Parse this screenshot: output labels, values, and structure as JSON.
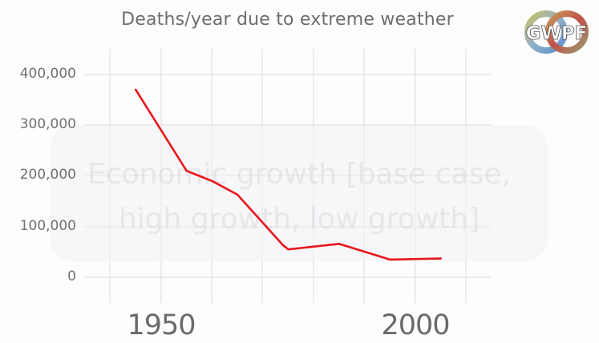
{
  "chart_data": {
    "type": "line",
    "title": "Deaths/year due to extreme weather",
    "xlabel": "",
    "ylabel": "",
    "x": [
      1945,
      1955,
      1960,
      1965,
      1974,
      1975,
      1985,
      1995,
      2005
    ],
    "series": [
      {
        "name": "Deaths/year",
        "color": "#e8161c",
        "values": [
          370000,
          210000,
          190000,
          163000,
          63000,
          55000,
          66000,
          35000,
          37000
        ]
      }
    ],
    "xlim": [
      1940,
      2015
    ],
    "ylim": [
      -50000,
      450000
    ],
    "x_tick_labels": [
      "1950",
      "2000"
    ],
    "y_tick_labels": [
      "400,000",
      "300,000",
      "200,000",
      "100,000",
      "0"
    ],
    "grid": true,
    "legend": "none"
  },
  "header": {
    "title": "Deaths/year due to extreme weather"
  },
  "logo": {
    "text": "GWPF"
  },
  "overlay": {
    "line1": "Economic growth [base case,",
    "line2": "high growth, low growth]"
  },
  "axes": {
    "y_ticks": [
      "400,000",
      "300,000",
      "200,000",
      "100,000",
      "0"
    ],
    "x_ticks": [
      "1950",
      "2000"
    ]
  },
  "colors": {
    "line": "#e8161c",
    "grid": "#d8d8d8",
    "text": "#6d6d6d"
  }
}
